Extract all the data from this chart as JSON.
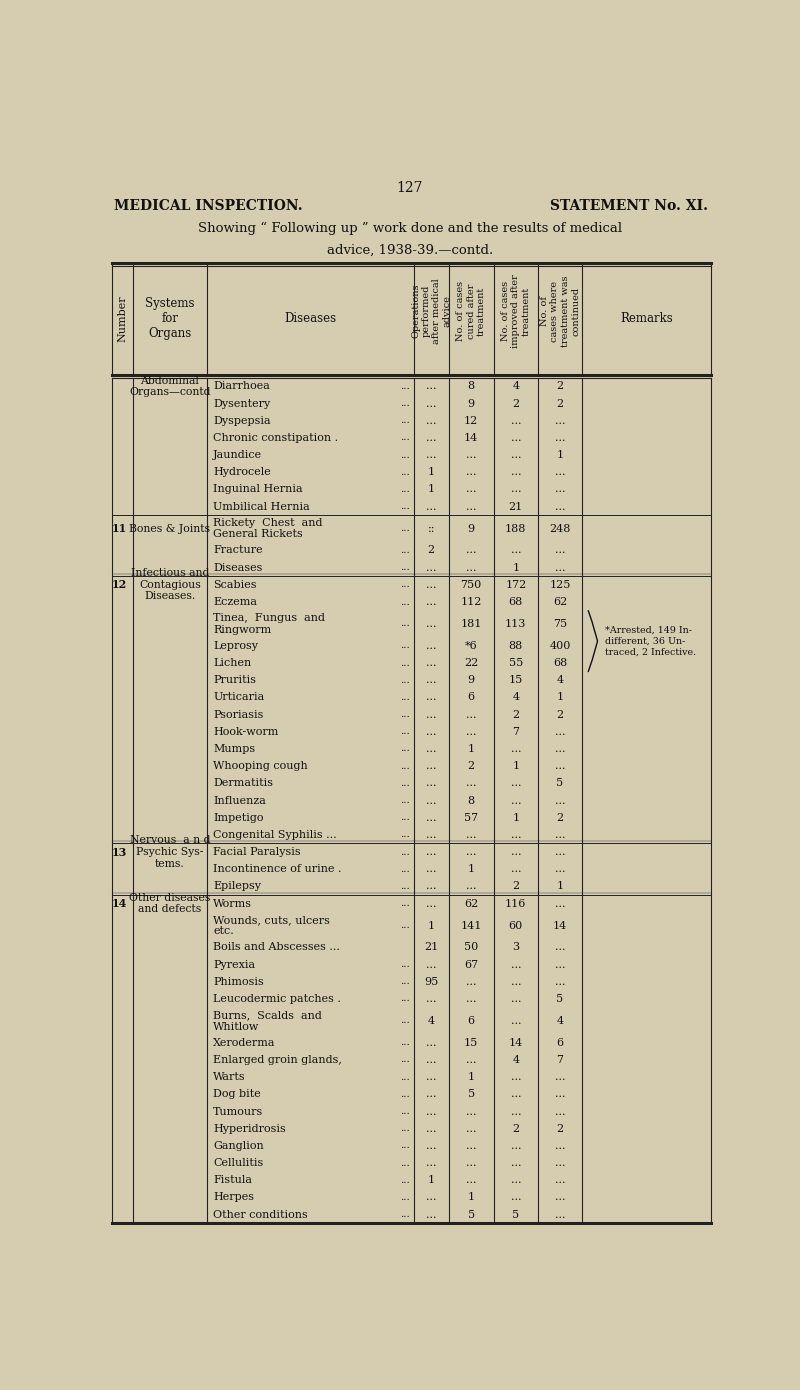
{
  "page_number": "127",
  "left_header": "MEDICAL INSPECTION.",
  "right_header": "STATEMENT No. XI.",
  "title_line1": "Showing “ Following up ” work done and the results of medical",
  "title_line2": "advice, 1938-39.—contd.",
  "bg_color": "#d6ccb0",
  "text_color": "#111111",
  "line_color": "#222222",
  "col_headers_rotated": [
    "Operations\nperformed\nafter medical\nadvice",
    "No. of cases\ncured after\ntreatment",
    "No. of cases\nimproved after\ntreatment",
    "No. of\ncases where\ntreatment was\ncontinued"
  ],
  "rows": [
    {
      "num": "",
      "system": "Abdominal\nOrgans—contd",
      "disease": "Diarrhoea",
      "dots_d": "...",
      "ops": "...",
      "cured": "8",
      "improved": "4",
      "cont": "2",
      "remarks": ""
    },
    {
      "num": "",
      "system": "",
      "disease": "Dysentery",
      "dots_d": "...",
      "ops": "...",
      "cured": "9",
      "improved": "2",
      "cont": "2",
      "remarks": ""
    },
    {
      "num": "",
      "system": "",
      "disease": "Dyspepsia",
      "dots_d": "...",
      "ops": "...",
      "cured": "12",
      "improved": "...",
      "cont": "...",
      "remarks": ""
    },
    {
      "num": "",
      "system": "",
      "disease": "Chronic constipation .",
      "dots_d": "...",
      "ops": "...",
      "cured": "14",
      "improved": "...",
      "cont": "...",
      "remarks": ""
    },
    {
      "num": "",
      "system": "",
      "disease": "Jaundice",
      "dots_d": "...",
      "ops": "...",
      "cured": "...",
      "improved": "...",
      "cont": "1",
      "remarks": ""
    },
    {
      "num": "",
      "system": "",
      "disease": "Hydrocele",
      "dots_d": "...",
      "ops": "1",
      "cured": "...",
      "improved": "...",
      "cont": "...",
      "remarks": ""
    },
    {
      "num": "",
      "system": "",
      "disease": "Inguinal Hernia",
      "dots_d": "...",
      "ops": "1",
      "cured": "...",
      "improved": "...",
      "cont": "...",
      "remarks": ""
    },
    {
      "num": "",
      "system": "",
      "disease": "Umbilical Hernia",
      "dots_d": "...",
      "ops": "...",
      "cured": "...",
      "improved": "21",
      "cont": "...",
      "remarks": ""
    },
    {
      "num": "11",
      "system": "Bones & Joints",
      "disease": "Rickety  Chest  and\nGeneral Rickets",
      "dots_d": "...",
      "ops": "::",
      "cured": "9",
      "improved": "188",
      "cont": "248",
      "remarks": ""
    },
    {
      "num": "",
      "system": "",
      "disease": "Fracture",
      "dots_d": "...",
      "ops": "2",
      "cured": "...",
      "improved": "...",
      "cont": "...",
      "remarks": ""
    },
    {
      "num": "",
      "system": "",
      "disease": "Diseases",
      "dots_d": "...",
      "ops": "...",
      "cured": "...",
      "improved": "1",
      "cont": "...",
      "remarks": ""
    },
    {
      "num": "12",
      "system": "Infectious and\nContagious\nDiseases.",
      "disease": "Scabies",
      "dots_d": "...",
      "ops": "...",
      "cured": "750",
      "improved": "172",
      "cont": "125",
      "remarks": ""
    },
    {
      "num": "",
      "system": "",
      "disease": "Eczema",
      "dots_d": "...",
      "ops": "...",
      "cured": "112",
      "improved": "68",
      "cont": "62",
      "remarks": ""
    },
    {
      "num": "",
      "system": "",
      "disease": "Tinea,  Fungus  and\nRingworm",
      "dots_d": "...",
      "ops": "...",
      "cured": "181",
      "improved": "113",
      "cont": "75",
      "remarks": ""
    },
    {
      "num": "",
      "system": "",
      "disease": "Leprosy",
      "dots_d": "...",
      "ops": "...",
      "cured": "*6",
      "improved": "88",
      "cont": "400",
      "remarks": ""
    },
    {
      "num": "",
      "system": "",
      "disease": "Lichen",
      "dots_d": "...",
      "ops": "...",
      "cured": "22",
      "improved": "55",
      "cont": "68",
      "remarks": ""
    },
    {
      "num": "",
      "system": "",
      "disease": "Pruritis",
      "dots_d": "...",
      "ops": "...",
      "cured": "9",
      "improved": "15",
      "cont": "4",
      "remarks": ""
    },
    {
      "num": "",
      "system": "",
      "disease": "Urticaria",
      "dots_d": "...",
      "ops": "...",
      "cured": "6",
      "improved": "4",
      "cont": "1",
      "remarks": ""
    },
    {
      "num": "",
      "system": "",
      "disease": "Psoriasis",
      "dots_d": "...",
      "ops": "...",
      "cured": "...",
      "improved": "2",
      "cont": "2",
      "remarks": ""
    },
    {
      "num": "",
      "system": "",
      "disease": "Hook-worm",
      "dots_d": "...",
      "ops": "...",
      "cured": "...",
      "improved": "7",
      "cont": "...",
      "remarks": ""
    },
    {
      "num": "",
      "system": "",
      "disease": "Mumps",
      "dots_d": "...",
      "ops": "...",
      "cured": "1",
      "improved": "...",
      "cont": "...",
      "remarks": ""
    },
    {
      "num": "",
      "system": "",
      "disease": "Whooping cough",
      "dots_d": "...",
      "ops": "...",
      "cured": "2",
      "improved": "1",
      "cont": "...",
      "remarks": ""
    },
    {
      "num": "",
      "system": "",
      "disease": "Dermatitis",
      "dots_d": "...",
      "ops": "...",
      "cured": "...",
      "improved": "...",
      "cont": "5",
      "remarks": ""
    },
    {
      "num": "",
      "system": "",
      "disease": "Influenza",
      "dots_d": "...",
      "ops": "...",
      "cured": "8",
      "improved": "...",
      "cont": "...",
      "remarks": ""
    },
    {
      "num": "",
      "system": "",
      "disease": "Impetigo",
      "dots_d": "...",
      "ops": "...",
      "cured": "57",
      "improved": "1",
      "cont": "2",
      "remarks": ""
    },
    {
      "num": "",
      "system": "",
      "disease": "Congenital Syphilis ...",
      "dots_d": "...",
      "ops": "...",
      "cured": "...",
      "improved": "...",
      "cont": "...",
      "remarks": ""
    },
    {
      "num": "13",
      "system": "Nervous  a n d\nPsychic Sys-\ntems.",
      "disease": "Facial Paralysis",
      "dots_d": "...",
      "ops": "...",
      "cured": "...",
      "improved": "...",
      "cont": "...",
      "remarks": ""
    },
    {
      "num": "",
      "system": "",
      "disease": "Incontinence of urine .",
      "dots_d": "...",
      "ops": "...",
      "cured": "1",
      "improved": "...",
      "cont": "...",
      "remarks": ""
    },
    {
      "num": "",
      "system": "",
      "disease": "Epilepsy",
      "dots_d": "...",
      "ops": "...",
      "cured": "...",
      "improved": "2",
      "cont": "1",
      "remarks": ""
    },
    {
      "num": "14",
      "system": "Other diseases\nand defects",
      "disease": "Worms",
      "dots_d": "...",
      "ops": "...",
      "cured": "62",
      "improved": "116",
      "cont": "...",
      "remarks": ""
    },
    {
      "num": "",
      "system": "",
      "disease": "Wounds, cuts, ulcers\netc.",
      "dots_d": "...",
      "ops": "1",
      "cured": "141",
      "improved": "60",
      "cont": "14",
      "remarks": ""
    },
    {
      "num": "",
      "system": "",
      "disease": "Boils and Abscesses ...",
      "dots_d": "",
      "ops": "21",
      "cured": "50",
      "improved": "3",
      "cont": "...",
      "remarks": ""
    },
    {
      "num": "",
      "system": "",
      "disease": "Pyrexia",
      "dots_d": "...",
      "ops": "...",
      "cured": "67",
      "improved": "...",
      "cont": "...",
      "remarks": ""
    },
    {
      "num": "",
      "system": "",
      "disease": "Phimosis",
      "dots_d": "...",
      "ops": "95",
      "cured": "...",
      "improved": "...",
      "cont": "...",
      "remarks": ""
    },
    {
      "num": "",
      "system": "",
      "disease": "Leucodermic patches .",
      "dots_d": "...",
      "ops": "...",
      "cured": "...",
      "improved": "...",
      "cont": "5",
      "remarks": ""
    },
    {
      "num": "",
      "system": "",
      "disease": "Burns,  Scalds  and\nWhitlow",
      "dots_d": "...",
      "ops": "4",
      "cured": "6",
      "improved": "...",
      "cont": "4",
      "remarks": ""
    },
    {
      "num": "",
      "system": "",
      "disease": "Xeroderma",
      "dots_d": "...",
      "ops": "...",
      "cured": "15",
      "improved": "14",
      "cont": "6",
      "remarks": ""
    },
    {
      "num": "",
      "system": "",
      "disease": "Enlarged groin glands,",
      "dots_d": "...",
      "ops": "...",
      "cured": "...",
      "improved": "4",
      "cont": "7",
      "remarks": ""
    },
    {
      "num": "",
      "system": "",
      "disease": "Warts",
      "dots_d": "...",
      "ops": "...",
      "cured": "1",
      "improved": "...",
      "cont": "...",
      "remarks": ""
    },
    {
      "num": "",
      "system": "",
      "disease": "Dog bite",
      "dots_d": "...",
      "ops": "...",
      "cured": "5",
      "improved": "...",
      "cont": "...",
      "remarks": ""
    },
    {
      "num": "",
      "system": "",
      "disease": "Tumours",
      "dots_d": "...",
      "ops": "...",
      "cured": "...",
      "improved": "...",
      "cont": "...",
      "remarks": ""
    },
    {
      "num": "",
      "system": "",
      "disease": "Hyperidrosis",
      "dots_d": "...",
      "ops": "...",
      "cured": "...",
      "improved": "2",
      "cont": "2",
      "remarks": ""
    },
    {
      "num": "",
      "system": "",
      "disease": "Ganglion",
      "dots_d": "...",
      "ops": "...",
      "cured": "...",
      "improved": "...",
      "cont": "...",
      "remarks": ""
    },
    {
      "num": "",
      "system": "",
      "disease": "Cellulitis",
      "dots_d": "...",
      "ops": "...",
      "cured": "...",
      "improved": "...",
      "cont": "...",
      "remarks": ""
    },
    {
      "num": "",
      "system": "",
      "disease": "Fistula",
      "dots_d": "...",
      "ops": "1",
      "cured": "...",
      "improved": "...",
      "cont": "...",
      "remarks": ""
    },
    {
      "num": "",
      "system": "",
      "disease": "Herpes",
      "dots_d": "...",
      "ops": "...",
      "cured": "1",
      "improved": "...",
      "cont": "...",
      "remarks": ""
    },
    {
      "num": "",
      "system": "",
      "disease": "Other conditions",
      "dots_d": "...",
      "ops": "...",
      "cured": "5",
      "improved": "5",
      "cont": "...",
      "remarks": ""
    }
  ],
  "leprosy_remark": "*Arrested, 149 In-\ndifferent, 36 Un-\ntraced, 2 Infective.",
  "leprosy_row_idx": 14,
  "remark_brace_rows": [
    13,
    14,
    15
  ]
}
